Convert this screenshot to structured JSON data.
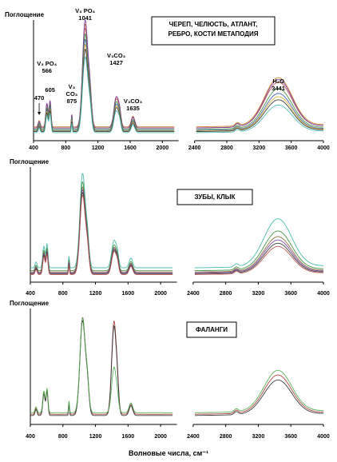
{
  "xlabel": "Волновые числа, см⁻¹",
  "chart_data": [
    {
      "type": "line",
      "ylabel": "Поглощение",
      "box_label": [
        "ЧЕРЕП, ЧЕЛЮСТЬ, АТЛАНТ,",
        "РЕБРО, КОСТИ МЕТАПОДИЯ"
      ],
      "xlim": [
        400,
        4000
      ],
      "xticks": [
        400,
        800,
        1200,
        1600,
        2000,
        2400,
        2800,
        3200,
        3600,
        4000
      ],
      "axis_break": [
        2200,
        2400
      ],
      "annotations": [
        {
          "lines": [
            "470"
          ],
          "x": 470
        },
        {
          "lines": [
            "V₃ PO₄",
            "566"
          ],
          "x": 566
        },
        {
          "lines": [
            "605"
          ],
          "x": 605
        },
        {
          "lines": [
            "V₃",
            "CO₃",
            "875"
          ],
          "x": 875
        },
        {
          "lines": [
            "V₃ PO₄",
            "1041"
          ],
          "x": 1041
        },
        {
          "lines": [
            "V₃CO₃",
            "1427"
          ],
          "x": 1427
        },
        {
          "lines": [
            "V₃CO₃",
            "1635"
          ],
          "x": 1635
        },
        {
          "lines": [
            "H₂O",
            "3441"
          ],
          "x": 3441
        }
      ],
      "series": [
        {
          "color": "#d07a2a",
          "s": 0.95,
          "o": 0.13
        },
        {
          "color": "#c05252",
          "s": 0.92,
          "o": 0.11
        },
        {
          "color": "#7a3fa3",
          "s": 1.0,
          "o": 0.1
        },
        {
          "color": "#3f8f3f",
          "s": 0.88,
          "o": 0.08
        },
        {
          "color": "#3a5fb0",
          "s": 0.84,
          "o": 0.06
        },
        {
          "color": "#e0b030",
          "s": 0.8,
          "o": 0.05
        },
        {
          "color": "#333333",
          "s": 0.76,
          "o": 0.04
        },
        {
          "color": "#45b8b0",
          "s": 0.7,
          "o": 0.02
        }
      ]
    },
    {
      "type": "line",
      "ylabel": "Поглощение",
      "box_label": [
        "ЗУБЫ, КЛЫК"
      ],
      "xlim": [
        400,
        4000
      ],
      "xticks": [
        400,
        800,
        1200,
        1600,
        2000,
        2400,
        2800,
        3200,
        3600,
        4000
      ],
      "axis_break": [
        2200,
        2400
      ],
      "annotations": [],
      "series": [
        {
          "color": "#40b8a8",
          "s": 1.0,
          "o": 0.17
        },
        {
          "color": "#3f8f3f",
          "s": 0.94,
          "o": 0.1
        },
        {
          "color": "#8a6b3a",
          "s": 0.9,
          "o": 0.07
        },
        {
          "color": "#7a3fa3",
          "s": 0.88,
          "o": 0.05
        },
        {
          "color": "#333333",
          "s": 0.86,
          "o": 0.03
        },
        {
          "color": "#c05252",
          "s": 0.84,
          "o": 0.01
        }
      ]
    },
    {
      "type": "line",
      "ylabel": "Поглощение",
      "box_label": [
        "ФАЛАНГИ"
      ],
      "xlim": [
        400,
        4000
      ],
      "xticks": [
        400,
        800,
        1200,
        1600,
        2000,
        2400,
        2800,
        3200,
        3600,
        4000
      ],
      "axis_break": [
        2200,
        2400
      ],
      "annotations": [],
      "series": [
        {
          "color": "#b03a3a",
          "s": 1.0,
          "o": 0.06,
          "p1427": 1.0
        },
        {
          "color": "#333333",
          "s": 0.98,
          "o": 0.03,
          "p1427": 0.98
        },
        {
          "color": "#50b050",
          "s": 0.98,
          "o": 0.1,
          "p1427": 0.5
        }
      ]
    }
  ]
}
